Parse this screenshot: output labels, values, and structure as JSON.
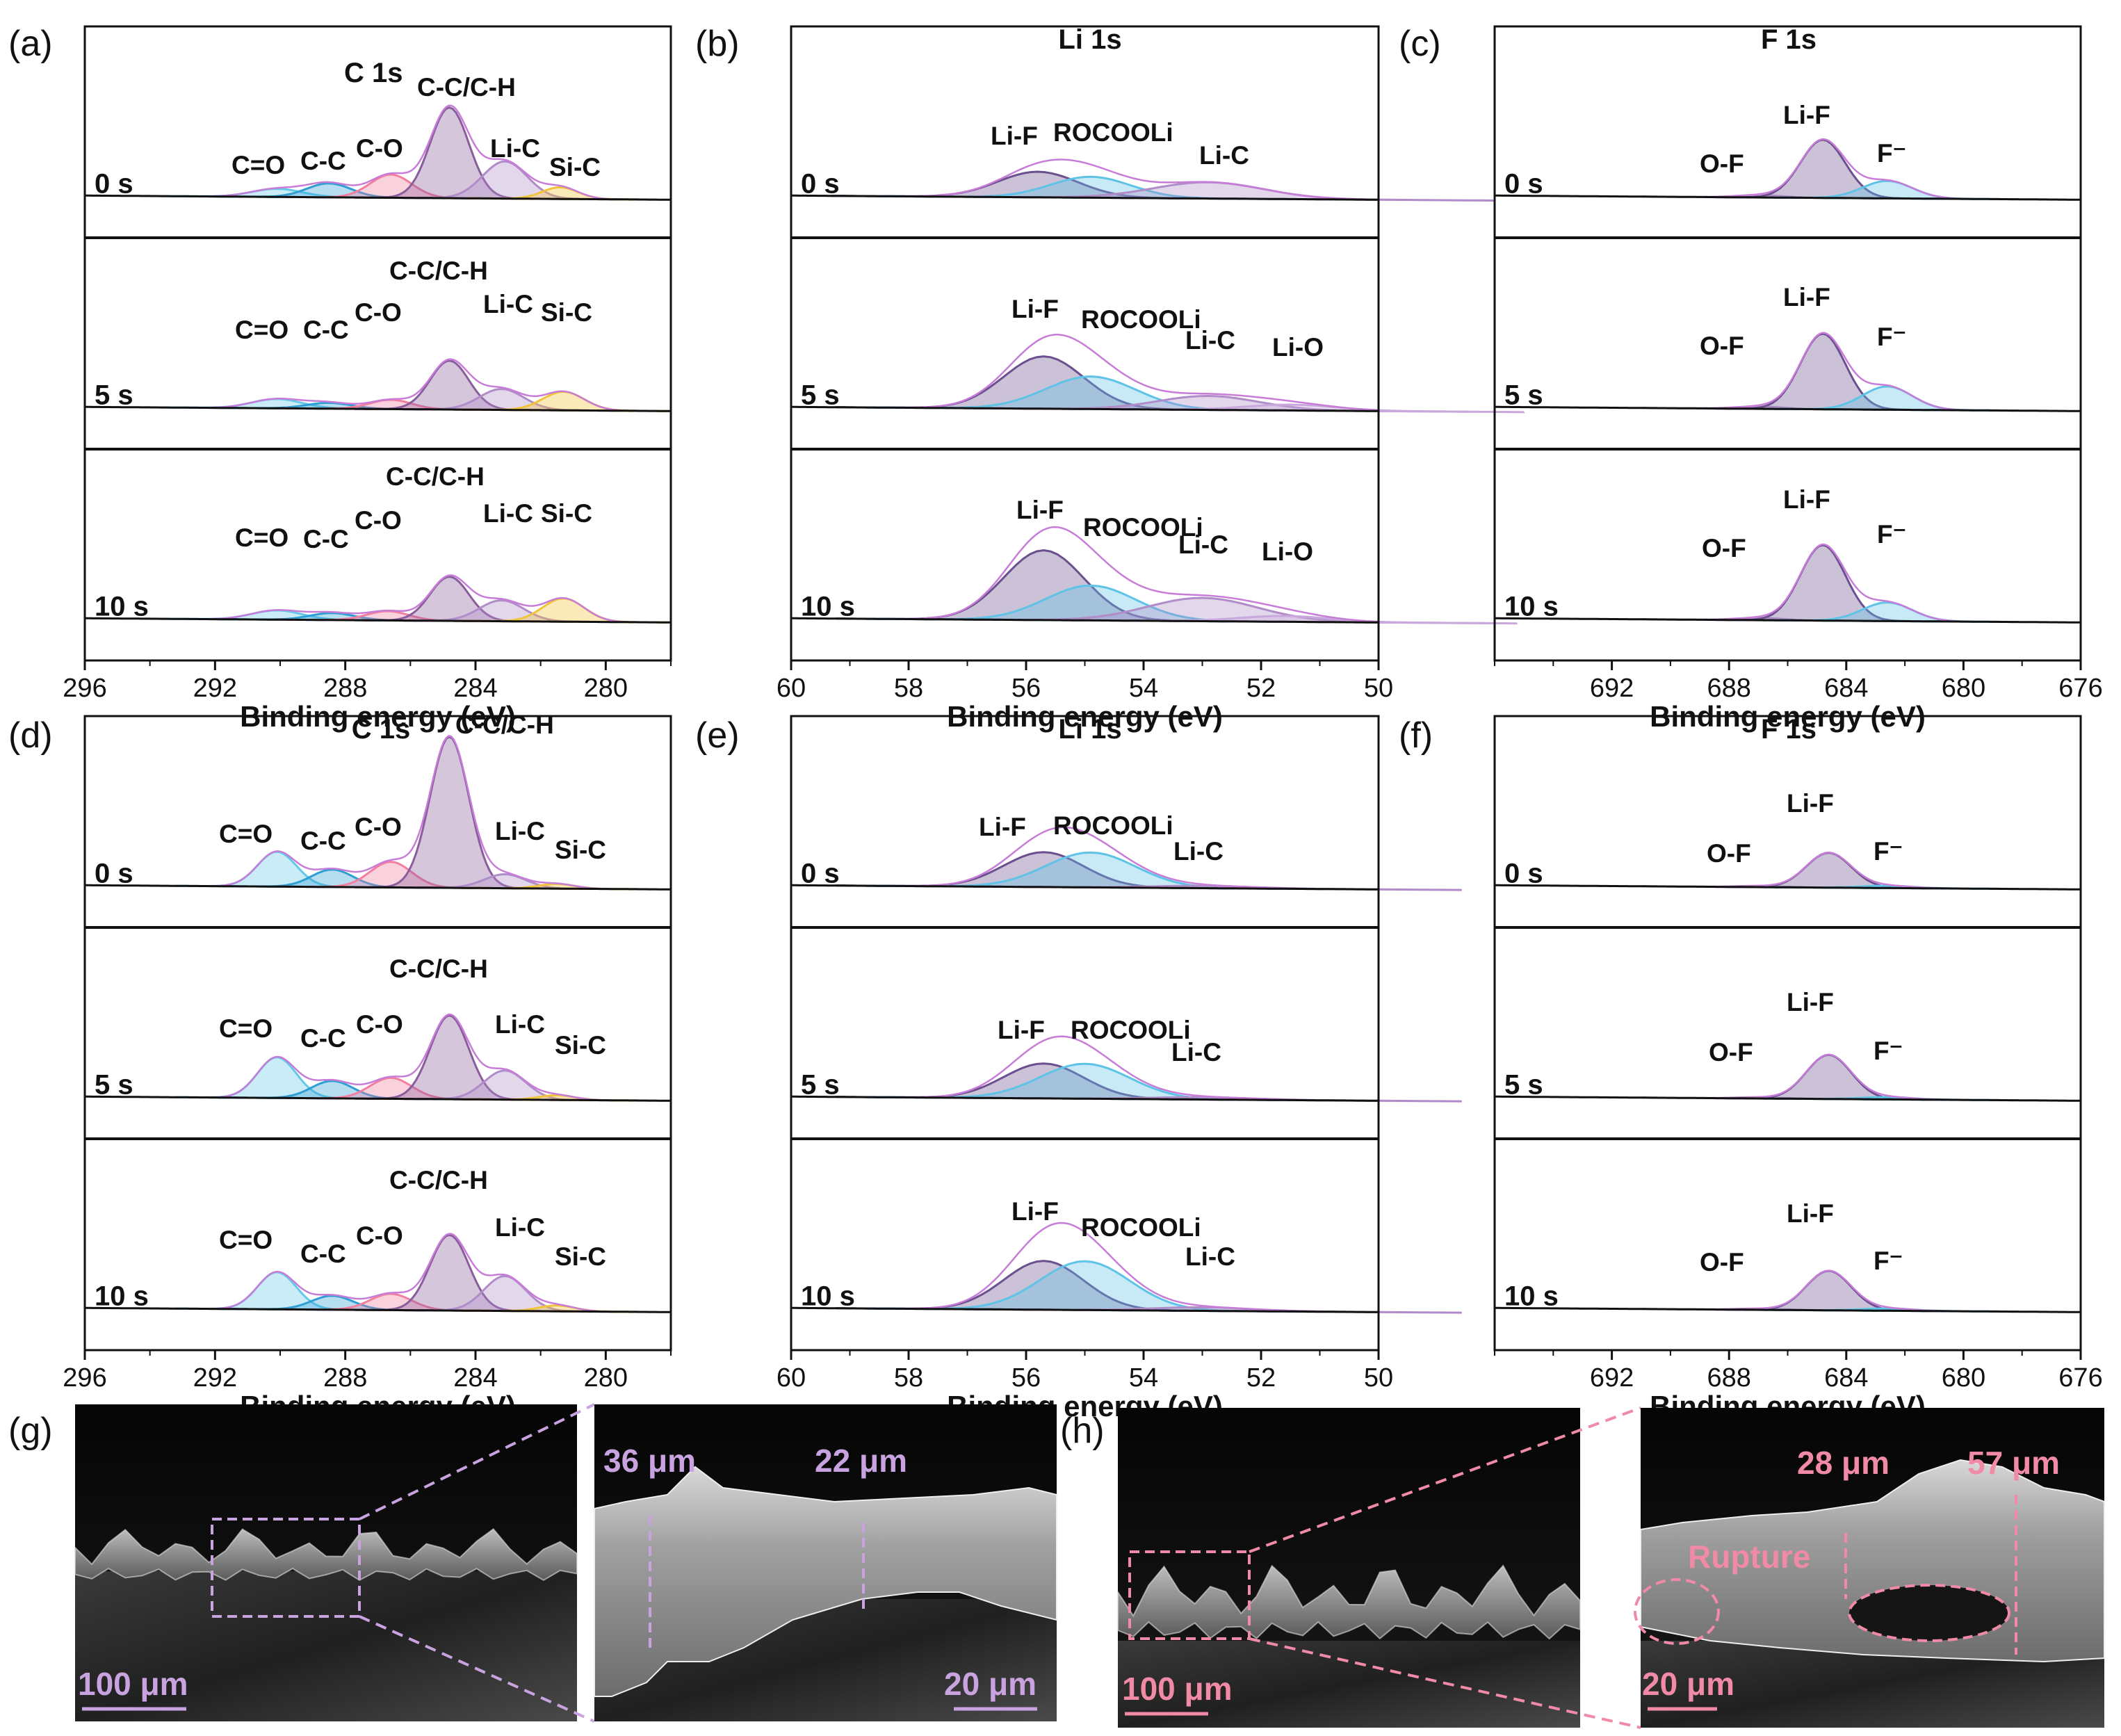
{
  "panels": [
    {
      "label": "(a)",
      "element": "C 1s",
      "xlim": [
        296,
        278
      ],
      "ticks": [
        296,
        292,
        288,
        284,
        280
      ],
      "xlabel": "Binding energy (eV)"
    },
    {
      "label": "(b)",
      "element": "Li 1s",
      "xlim": [
        60,
        50
      ],
      "ticks": [
        60,
        58,
        56,
        54,
        52,
        50
      ],
      "xlabel": "Binding energy (eV)"
    },
    {
      "label": "(c)",
      "element": "F 1s",
      "xlim": [
        696,
        676
      ],
      "ticks": [
        692,
        688,
        684,
        680,
        676
      ],
      "xlabel": "Binding energy (eV)"
    },
    {
      "label": "(d)",
      "element": "C 1s",
      "xlim": [
        296,
        278
      ],
      "ticks": [
        296,
        292,
        288,
        284,
        280
      ],
      "xlabel": "Binding energy (eV)"
    },
    {
      "label": "(e)",
      "element": "Li 1s",
      "xlim": [
        60,
        50
      ],
      "ticks": [
        60,
        58,
        56,
        54,
        52,
        50
      ],
      "xlabel": "Binding energy (eV)"
    },
    {
      "label": "(f)",
      "element": "F 1s",
      "xlim": [
        696,
        676
      ],
      "ticks": [
        692,
        688,
        684,
        680,
        676
      ],
      "xlabel": "Binding energy (eV)"
    }
  ],
  "time_labels": [
    "0 s",
    "5 s",
    "10 s"
  ],
  "peak_colors": {
    "C=O": "#66c8e8",
    "C-C": "#2f9fd3",
    "C-O": "#f27fa0",
    "C-C/C-H": "#8a5d9c",
    "Li-C": "#b08cc8",
    "Si-C": "#f0c43a",
    "Li-F": "#6b4f8f",
    "ROCOOLi": "#5ec3e6",
    "Li-O": "#c9a9dd",
    "O-F": "#c9a9dd",
    "F⁻": "#5ec3e6"
  },
  "envelope_color": "#c77dd8",
  "chart_data": [
    {
      "type": "area",
      "panel": "(a)",
      "title": "C 1s",
      "xlabel": "Binding energy (eV)",
      "xlim": [
        296,
        278
      ],
      "spectra": [
        {
          "time": "0 s",
          "peaks": [
            {
              "name": "C=O",
              "center": 290.1,
              "height": 0.07,
              "fwhm": 1.8
            },
            {
              "name": "C-C",
              "center": 288.5,
              "height": 0.12,
              "fwhm": 1.6
            },
            {
              "name": "C-O",
              "center": 286.6,
              "height": 0.2,
              "fwhm": 1.5
            },
            {
              "name": "C-C/C-H",
              "center": 284.8,
              "height": 0.78,
              "fwhm": 1.4
            },
            {
              "name": "Li-C",
              "center": 283.1,
              "height": 0.32,
              "fwhm": 1.6
            },
            {
              "name": "Si-C",
              "center": 281.4,
              "height": 0.1,
              "fwhm": 1.3
            }
          ]
        },
        {
          "time": "5 s",
          "peaks": [
            {
              "name": "C=O",
              "center": 290.1,
              "height": 0.08,
              "fwhm": 1.8
            },
            {
              "name": "C-C",
              "center": 288.5,
              "height": 0.05,
              "fwhm": 1.6
            },
            {
              "name": "C-O",
              "center": 286.6,
              "height": 0.08,
              "fwhm": 1.5
            },
            {
              "name": "C-C/C-H",
              "center": 284.8,
              "height": 0.42,
              "fwhm": 1.4
            },
            {
              "name": "Li-C",
              "center": 283.2,
              "height": 0.18,
              "fwhm": 1.6
            },
            {
              "name": "Si-C",
              "center": 281.3,
              "height": 0.16,
              "fwhm": 1.5
            }
          ]
        },
        {
          "time": "10 s",
          "peaks": [
            {
              "name": "C=O",
              "center": 290.1,
              "height": 0.08,
              "fwhm": 1.8
            },
            {
              "name": "C-C",
              "center": 288.4,
              "height": 0.06,
              "fwhm": 1.6
            },
            {
              "name": "C-O",
              "center": 286.7,
              "height": 0.08,
              "fwhm": 1.5
            },
            {
              "name": "C-C/C-H",
              "center": 284.8,
              "height": 0.38,
              "fwhm": 1.4
            },
            {
              "name": "Li-C",
              "center": 283.2,
              "height": 0.18,
              "fwhm": 1.6
            },
            {
              "name": "Si-C",
              "center": 281.3,
              "height": 0.2,
              "fwhm": 1.5
            }
          ]
        }
      ],
      "annotations": [
        {
          "time": "0 s",
          "labels": [
            "C=O",
            "C-C",
            "C-O",
            "C-C/C-H",
            "Li-C",
            "Si-C"
          ]
        },
        {
          "time": "5 s",
          "labels": [
            "C=O",
            "C-C",
            "C-O",
            "C-C/C-H",
            "Li-C",
            "Si-C"
          ]
        },
        {
          "time": "10 s",
          "labels": [
            "C=O",
            "C-C",
            "C-O",
            "C-C/C-H",
            "Li-C",
            "Si-C"
          ]
        }
      ]
    },
    {
      "type": "area",
      "panel": "(b)",
      "title": "Li 1s",
      "xlabel": "Binding energy (eV)",
      "xlim": [
        60,
        50
      ],
      "spectra": [
        {
          "time": "0 s",
          "peaks": [
            {
              "name": "Li-F",
              "center": 55.8,
              "height": 0.22,
              "fwhm": 1.6
            },
            {
              "name": "ROCOOLi",
              "center": 54.9,
              "height": 0.18,
              "fwhm": 1.6
            },
            {
              "name": "Li-C",
              "center": 52.9,
              "height": 0.14,
              "fwhm": 2.2
            }
          ]
        },
        {
          "time": "5 s",
          "peaks": [
            {
              "name": "Li-F",
              "center": 55.7,
              "height": 0.45,
              "fwhm": 1.6
            },
            {
              "name": "ROCOOLi",
              "center": 54.9,
              "height": 0.28,
              "fwhm": 1.8
            },
            {
              "name": "Li-C",
              "center": 52.9,
              "height": 0.12,
              "fwhm": 2.0
            },
            {
              "name": "Li-O",
              "center": 51.5,
              "height": 0.05,
              "fwhm": 1.8
            }
          ]
        },
        {
          "time": "10 s",
          "peaks": [
            {
              "name": "Li-F",
              "center": 55.7,
              "height": 0.6,
              "fwhm": 1.6
            },
            {
              "name": "ROCOOLi",
              "center": 54.9,
              "height": 0.3,
              "fwhm": 1.8
            },
            {
              "name": "Li-C",
              "center": 53.0,
              "height": 0.2,
              "fwhm": 2.2
            },
            {
              "name": "Li-O",
              "center": 51.6,
              "height": 0.05,
              "fwhm": 1.8
            }
          ]
        }
      ]
    },
    {
      "type": "area",
      "panel": "(c)",
      "title": "F 1s",
      "xlabel": "Binding energy (eV)",
      "xlim": [
        696,
        676
      ],
      "spectra": [
        {
          "time": "0 s",
          "peaks": [
            {
              "name": "O-F",
              "center": 687.0,
              "height": 0.02,
              "fwhm": 1.8
            },
            {
              "name": "Li-F",
              "center": 684.8,
              "height": 0.5,
              "fwhm": 1.8
            },
            {
              "name": "F⁻",
              "center": 682.6,
              "height": 0.15,
              "fwhm": 2.0
            }
          ]
        },
        {
          "time": "5 s",
          "peaks": [
            {
              "name": "O-F",
              "center": 687.0,
              "height": 0.02,
              "fwhm": 1.8
            },
            {
              "name": "Li-F",
              "center": 684.8,
              "height": 0.65,
              "fwhm": 1.8
            },
            {
              "name": "F⁻",
              "center": 682.6,
              "height": 0.2,
              "fwhm": 2.0
            }
          ]
        },
        {
          "time": "10 s",
          "peaks": [
            {
              "name": "O-F",
              "center": 687.0,
              "height": 0.02,
              "fwhm": 1.8
            },
            {
              "name": "Li-F",
              "center": 684.8,
              "height": 0.65,
              "fwhm": 1.8
            },
            {
              "name": "F⁻",
              "center": 682.6,
              "height": 0.16,
              "fwhm": 2.0
            }
          ]
        }
      ]
    },
    {
      "type": "area",
      "panel": "(d)",
      "title": "C 1s",
      "xlabel": "Binding energy (eV)",
      "xlim": [
        296,
        278
      ],
      "spectra": [
        {
          "time": "0 s",
          "peaks": [
            {
              "name": "C=O",
              "center": 290.1,
              "height": 0.3,
              "fwhm": 1.4
            },
            {
              "name": "C-C",
              "center": 288.4,
              "height": 0.15,
              "fwhm": 1.5
            },
            {
              "name": "C-O",
              "center": 286.6,
              "height": 0.22,
              "fwhm": 1.5
            },
            {
              "name": "C-C/C-H",
              "center": 284.8,
              "height": 1.3,
              "fwhm": 1.4
            },
            {
              "name": "Li-C",
              "center": 283.1,
              "height": 0.12,
              "fwhm": 1.5
            },
            {
              "name": "Si-C",
              "center": 281.5,
              "height": 0.04,
              "fwhm": 1.3
            }
          ]
        },
        {
          "time": "5 s",
          "peaks": [
            {
              "name": "C=O",
              "center": 290.1,
              "height": 0.35,
              "fwhm": 1.4
            },
            {
              "name": "C-C",
              "center": 288.4,
              "height": 0.15,
              "fwhm": 1.5
            },
            {
              "name": "C-O",
              "center": 286.6,
              "height": 0.18,
              "fwhm": 1.5
            },
            {
              "name": "C-C/C-H",
              "center": 284.8,
              "height": 0.72,
              "fwhm": 1.4
            },
            {
              "name": "Li-C",
              "center": 283.1,
              "height": 0.25,
              "fwhm": 1.5
            },
            {
              "name": "Si-C",
              "center": 281.5,
              "height": 0.04,
              "fwhm": 1.3
            }
          ]
        },
        {
          "time": "10 s",
          "peaks": [
            {
              "name": "C=O",
              "center": 290.1,
              "height": 0.32,
              "fwhm": 1.4
            },
            {
              "name": "C-C",
              "center": 288.4,
              "height": 0.12,
              "fwhm": 1.5
            },
            {
              "name": "C-O",
              "center": 286.6,
              "height": 0.14,
              "fwhm": 1.5
            },
            {
              "name": "C-C/C-H",
              "center": 284.8,
              "height": 0.65,
              "fwhm": 1.4
            },
            {
              "name": "Li-C",
              "center": 283.1,
              "height": 0.3,
              "fwhm": 1.5
            },
            {
              "name": "Si-C",
              "center": 281.5,
              "height": 0.05,
              "fwhm": 1.3
            }
          ]
        }
      ]
    },
    {
      "type": "area",
      "panel": "(e)",
      "title": "Li 1s",
      "xlabel": "Binding energy (eV)",
      "xlim": [
        60,
        50
      ],
      "spectra": [
        {
          "time": "0 s",
          "peaks": [
            {
              "name": "Li-F",
              "center": 55.7,
              "height": 0.3,
              "fwhm": 1.6
            },
            {
              "name": "ROCOOLi",
              "center": 54.9,
              "height": 0.3,
              "fwhm": 1.8
            },
            {
              "name": "Li-C",
              "center": 53.0,
              "height": 0.02,
              "fwhm": 2.0
            }
          ]
        },
        {
          "time": "5 s",
          "peaks": [
            {
              "name": "Li-F",
              "center": 55.7,
              "height": 0.3,
              "fwhm": 1.6
            },
            {
              "name": "ROCOOLi",
              "center": 55.0,
              "height": 0.3,
              "fwhm": 1.8
            },
            {
              "name": "Li-C",
              "center": 53.0,
              "height": 0.02,
              "fwhm": 2.0
            }
          ]
        },
        {
          "time": "10 s",
          "peaks": [
            {
              "name": "Li-F",
              "center": 55.7,
              "height": 0.42,
              "fwhm": 1.6
            },
            {
              "name": "ROCOOLi",
              "center": 55.0,
              "height": 0.42,
              "fwhm": 1.8
            },
            {
              "name": "Li-C",
              "center": 53.0,
              "height": 0.03,
              "fwhm": 2.0
            }
          ]
        }
      ]
    },
    {
      "type": "area",
      "panel": "(f)",
      "title": "F 1s",
      "xlabel": "Binding energy (eV)",
      "xlim": [
        696,
        676
      ],
      "spectra": [
        {
          "time": "0 s",
          "peaks": [
            {
              "name": "O-F",
              "center": 687.0,
              "height": 0.01,
              "fwhm": 1.8
            },
            {
              "name": "Li-F",
              "center": 684.6,
              "height": 0.3,
              "fwhm": 1.8
            },
            {
              "name": "F⁻",
              "center": 682.6,
              "height": 0.02,
              "fwhm": 2.0
            }
          ]
        },
        {
          "time": "5 s",
          "peaks": [
            {
              "name": "O-F",
              "center": 687.0,
              "height": 0.01,
              "fwhm": 1.8
            },
            {
              "name": "Li-F",
              "center": 684.6,
              "height": 0.38,
              "fwhm": 1.8
            },
            {
              "name": "F⁻",
              "center": 682.6,
              "height": 0.02,
              "fwhm": 2.0
            }
          ]
        },
        {
          "time": "10 s",
          "peaks": [
            {
              "name": "O-F",
              "center": 687.0,
              "height": 0.01,
              "fwhm": 1.8
            },
            {
              "name": "Li-F",
              "center": 684.6,
              "height": 0.34,
              "fwhm": 1.8
            },
            {
              "name": "F⁻",
              "center": 682.6,
              "height": 0.02,
              "fwhm": 2.0
            }
          ]
        }
      ]
    }
  ],
  "sem": {
    "g": {
      "label": "(g)",
      "scale_left": "100 μm",
      "scale_right": "20 μm",
      "measure_1": "36 μm",
      "measure_2": "22 μm",
      "accent": "#c9a3e0"
    },
    "h": {
      "label": "(h)",
      "scale_left": "100 μm",
      "scale_right": "20 μm",
      "measure_1": "28 μm",
      "measure_2": "57 μm",
      "rupture": "Rupture",
      "accent": "#f08aa6"
    }
  }
}
